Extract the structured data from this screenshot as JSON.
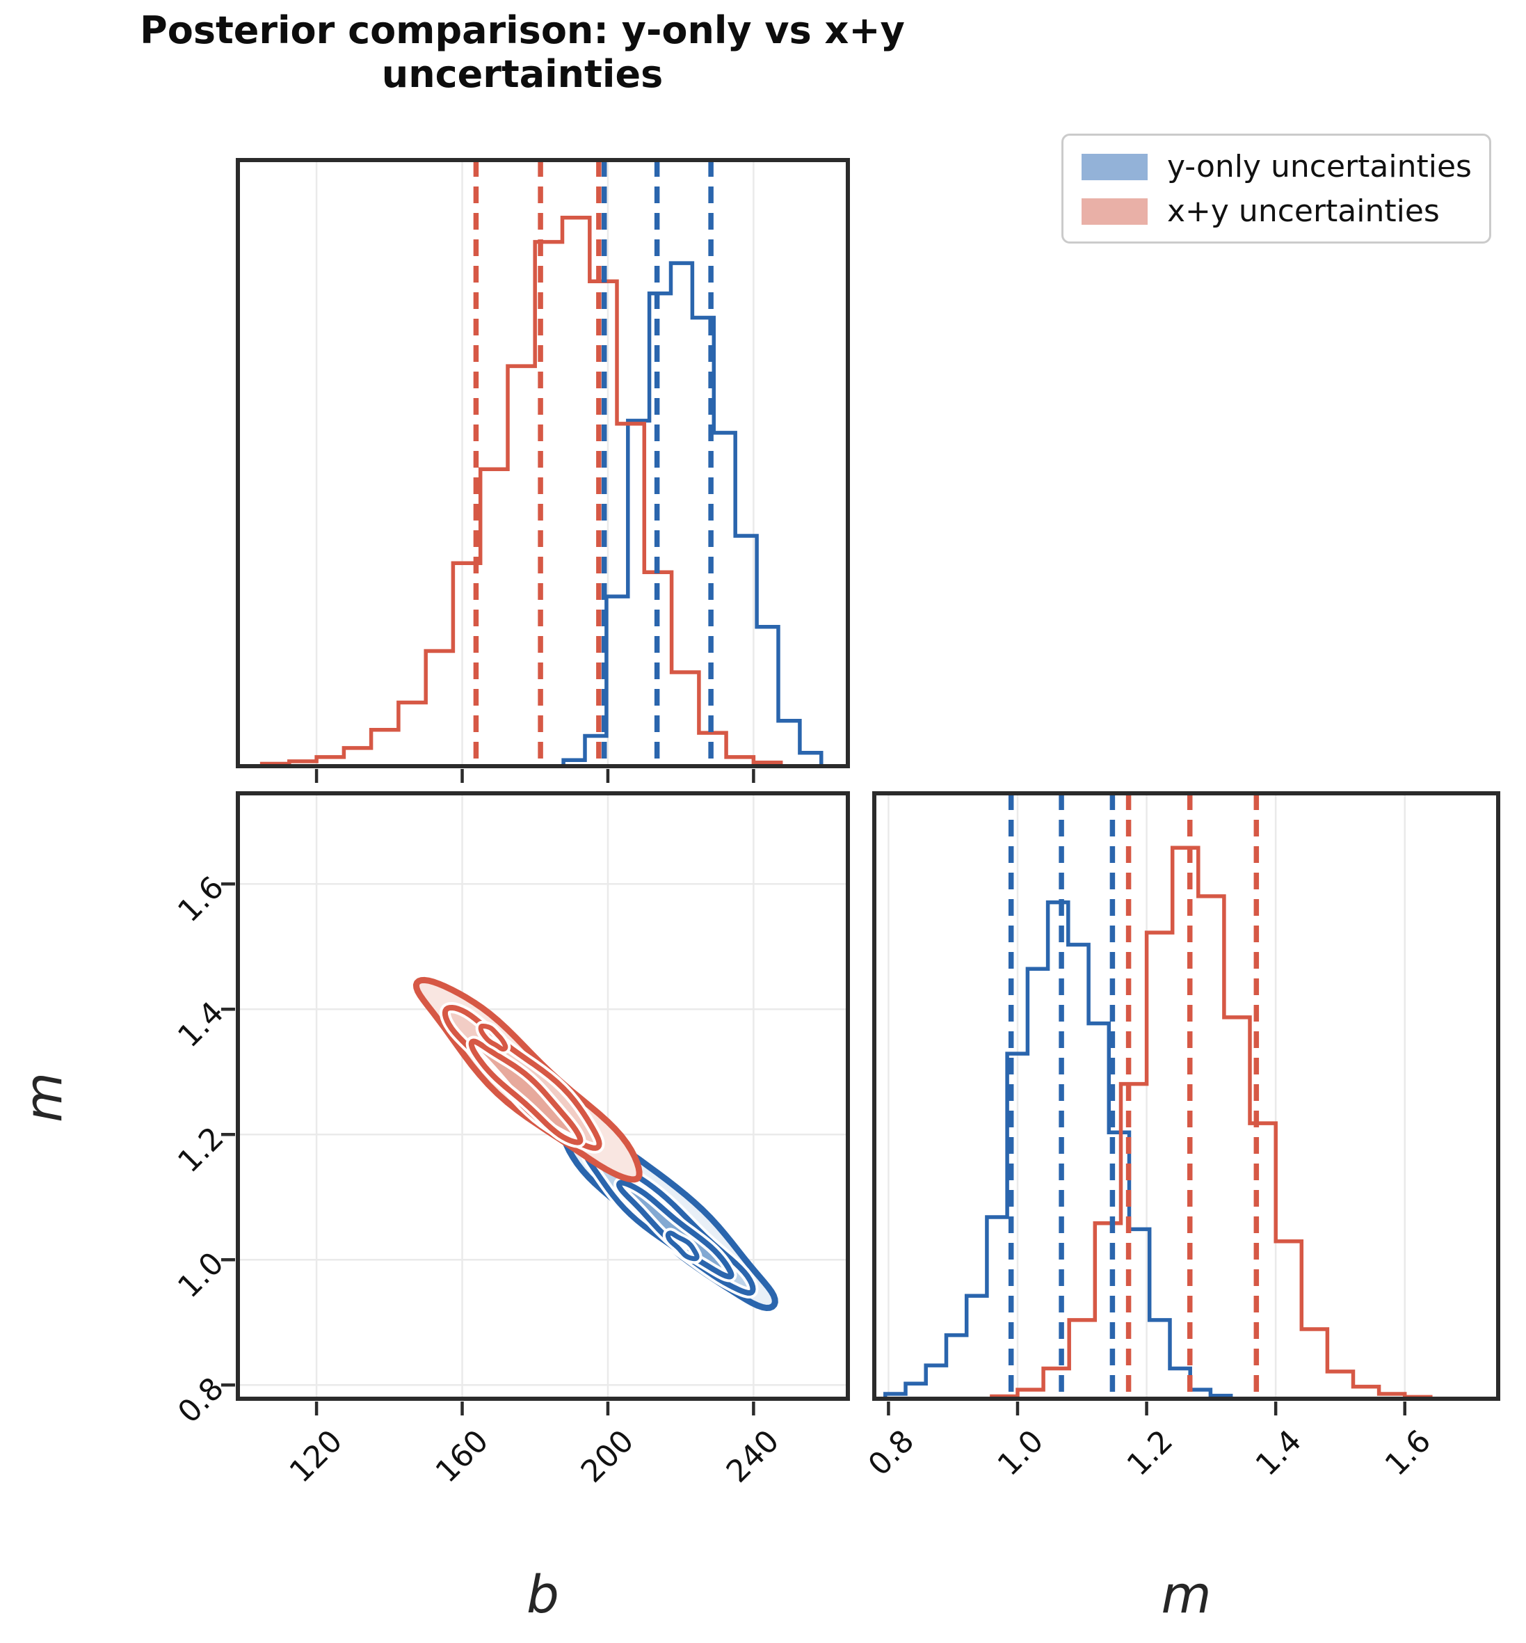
{
  "title": "Posterior comparison: y-only vs x+y uncertainties",
  "legend": {
    "items": [
      {
        "label": "y-only uncertainties",
        "swatch": "#93b2d8",
        "line": "#2a65ad"
      },
      {
        "label": "x+y uncertainties",
        "swatch": "#e9b0a7",
        "line": "#d65845"
      }
    ]
  },
  "axes": {
    "b_label": "b",
    "m_label": "m"
  },
  "colors": {
    "blue_line": "#2a65ad",
    "red_line": "#d65845",
    "frame": "#2b2b2b",
    "grid": "#eaeaea",
    "text": "#111111",
    "legend_border": "#cbcbcb",
    "background": "#ffffff"
  },
  "chart_data": [
    {
      "id": "hist_b",
      "type": "bar",
      "subtype": "step-histogram",
      "panel": "top-left",
      "xlabel": "b",
      "ylabel": "",
      "x_range": [
        98.4,
        265.9
      ],
      "ticks": [
        120,
        160,
        200,
        240
      ],
      "tick_labels": [
        "120",
        "160",
        "200",
        "240"
      ],
      "grid": "vertical",
      "series": [
        {
          "name": "y-only uncertainties",
          "color": "#2a65ad",
          "bin_start": 187.8,
          "bin_width": 5.9,
          "heights": [
            0.01,
            0.05,
            0.28,
            0.57,
            0.78,
            0.83,
            0.74,
            0.55,
            0.38,
            0.23,
            0.075,
            0.022
          ],
          "dashed_lines": [
            199.0,
            213.5,
            228.3
          ],
          "dashed_lines_meaning": "16th / 50th / 84th percentiles"
        },
        {
          "name": "x+y uncertainties",
          "color": "#d65845",
          "bin_start": 105.0,
          "bin_width": 7.5,
          "heights": [
            0.004,
            0.008,
            0.015,
            0.03,
            0.06,
            0.105,
            0.19,
            0.335,
            0.49,
            0.66,
            0.865,
            0.905,
            0.8,
            0.565,
            0.32,
            0.155,
            0.055,
            0.015,
            0.006
          ],
          "dashed_lines": [
            163.8,
            181.5,
            197.5
          ],
          "dashed_lines_meaning": "16th / 50th / 84th percentiles"
        }
      ]
    },
    {
      "id": "contour_bm",
      "type": "heatmap",
      "subtype": "2d-density-contours",
      "panel": "bottom-left",
      "xlabel": "b",
      "ylabel": "m",
      "x_range": [
        98.4,
        265.9
      ],
      "y_range": [
        0.778,
        1.7447
      ],
      "x_ticks": [
        120,
        160,
        200,
        240
      ],
      "x_tick_labels": [
        "120",
        "160",
        "200",
        "240"
      ],
      "y_ticks": [
        0.8,
        1.0,
        1.2,
        1.4,
        1.6
      ],
      "y_tick_labels": [
        "0.8",
        "1.0",
        "1.2",
        "1.4",
        "1.6"
      ],
      "grid": "both",
      "series": [
        {
          "name": "y-only uncertainties",
          "line": "#2a65ad",
          "center": [
            216.5,
            1.07
          ],
          "slope": -0.0049,
          "levels": [
            {
              "c": [
                216.5,
                1.071
              ],
              "len": 28.5,
              "width": 36,
              "fill": "#e8eff7"
            },
            {
              "c": [
                217.0,
                1.058
              ],
              "len": 22.0,
              "width": 24,
              "fill": "#bdd3e9"
            },
            {
              "c": [
                218.5,
                1.048
              ],
              "len": 15.5,
              "width": 14,
              "fill": "#83a9d2"
            },
            {
              "c": [
                220.5,
                1.022
              ],
              "len": 4.0,
              "width": 7.5,
              "fill": "#bdd3e9"
            }
          ]
        },
        {
          "name": "x+y uncertainties",
          "line": "#d65845",
          "center": [
            178.0,
            1.287
          ],
          "slope": -0.00527,
          "levels": [
            {
              "c": [
                178.0,
                1.287
              ],
              "len": 30.0,
              "width": 37,
              "fill": "#f9e6e1"
            },
            {
              "c": [
                176.5,
                1.29
              ],
              "len": 21.5,
              "width": 26,
              "fill": "#f2cdc5"
            },
            {
              "c": [
                177.5,
                1.268
              ],
              "len": 15.0,
              "width": 16,
              "fill": "#e7a99c"
            },
            {
              "c": [
                168.5,
                1.355
              ],
              "len": 3.2,
              "width": 7.5,
              "fill": "#f2cdc5"
            }
          ]
        }
      ]
    },
    {
      "id": "hist_m",
      "type": "bar",
      "subtype": "step-histogram",
      "panel": "bottom-right",
      "xlabel": "m",
      "ylabel": "",
      "x_range": [
        0.778,
        1.7447
      ],
      "ticks": [
        0.8,
        1.0,
        1.2,
        1.4,
        1.6
      ],
      "tick_labels": [
        "0.8",
        "1.0",
        "1.2",
        "1.4",
        "1.6"
      ],
      "grid": "vertical",
      "series": [
        {
          "name": "y-only uncertainties",
          "color": "#2a65ad",
          "bin_start": 0.795,
          "bin_width": 0.0315,
          "heights": [
            0.008,
            0.025,
            0.055,
            0.105,
            0.17,
            0.3,
            0.57,
            0.71,
            0.82,
            0.75,
            0.62,
            0.44,
            0.28,
            0.13,
            0.05,
            0.015,
            0.005
          ],
          "dashed_lines": [
            0.99,
            1.068,
            1.147
          ],
          "dashed_lines_meaning": "16th / 50th / 84th percentiles"
        },
        {
          "name": "x+y uncertainties",
          "color": "#d65845",
          "bin_start": 0.96,
          "bin_width": 0.04,
          "heights": [
            0.004,
            0.015,
            0.05,
            0.13,
            0.29,
            0.52,
            0.77,
            0.91,
            0.83,
            0.63,
            0.455,
            0.26,
            0.115,
            0.045,
            0.02,
            0.008,
            0.003
          ],
          "dashed_lines": [
            1.172,
            1.267,
            1.37
          ],
          "dashed_lines_meaning": "16th / 50th / 84th percentiles"
        }
      ]
    }
  ]
}
